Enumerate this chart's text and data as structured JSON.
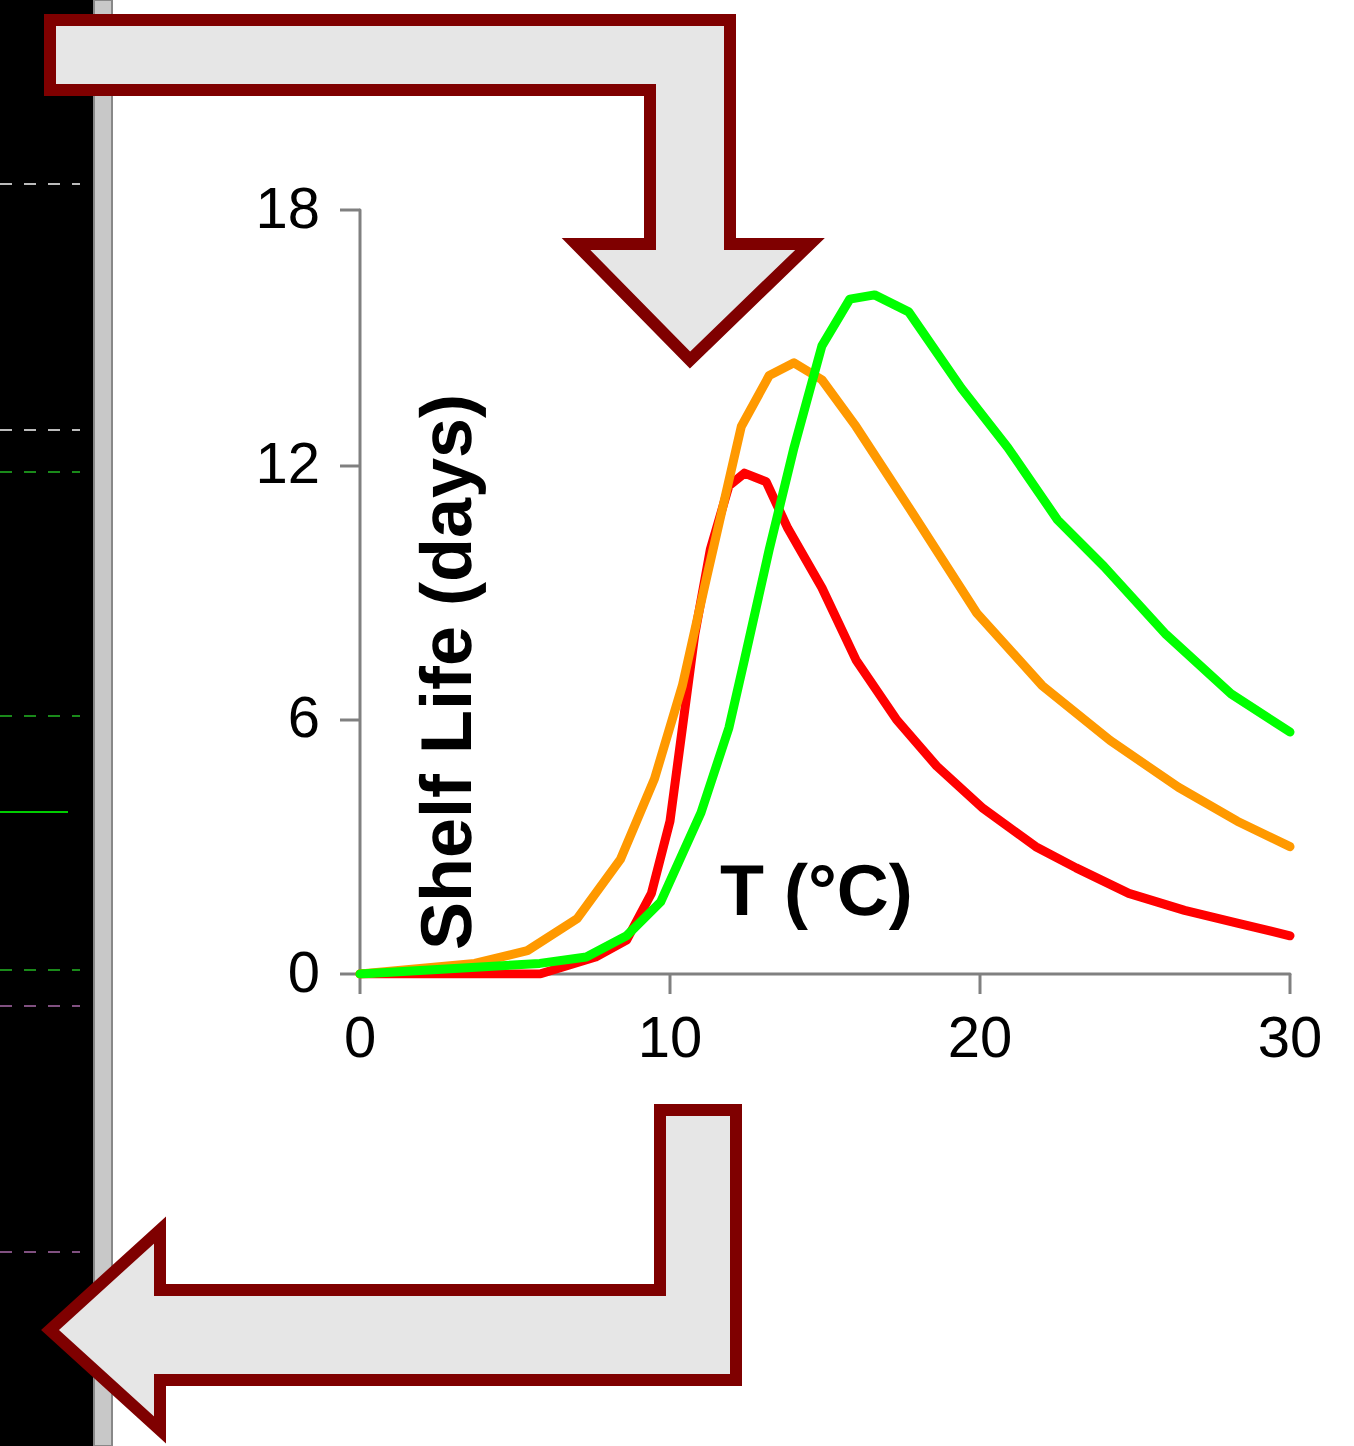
{
  "chart_data": {
    "type": "line",
    "xlabel": "T (°C)",
    "ylabel": "Shelf Life (days)",
    "xlim": [
      0,
      30
    ],
    "xticks": [
      0,
      10,
      20,
      30
    ],
    "ylim": [
      0,
      18
    ],
    "yticks": [
      0,
      6,
      12,
      18
    ],
    "marker": "none",
    "line_style": "solid",
    "series": [
      {
        "color": "#ff0000",
        "x": [
          0,
          5.8,
          7.6,
          8.6,
          9.4,
          10,
          10.4,
          10.8,
          11.3,
          11.9,
          12.4,
          13.1,
          13.8,
          14.9,
          16.0,
          17.3,
          18.6,
          20.1,
          21.8,
          23.1,
          24.8,
          26.6,
          28.3,
          30
        ],
        "values": [
          0,
          0,
          0.4,
          0.8,
          1.9,
          3.6,
          5.8,
          8.0,
          10.0,
          11.5,
          11.8,
          11.6,
          10.5,
          9.1,
          7.4,
          6.0,
          4.9,
          3.9,
          3.0,
          2.5,
          1.9,
          1.5,
          1.2,
          0.9
        ]
      },
      {
        "color": "#ff9900",
        "x": [
          0,
          3.7,
          5.4,
          7.0,
          8.4,
          9.5,
          10.4,
          11.2,
          12.3,
          13.2,
          14.0,
          14.9,
          16.0,
          17.7,
          19.9,
          22.0,
          24.2,
          26.4,
          28.3,
          30
        ],
        "values": [
          0,
          0.25,
          0.55,
          1.3,
          2.7,
          4.6,
          6.8,
          9.4,
          12.9,
          14.1,
          14.4,
          14.0,
          12.9,
          11.0,
          8.5,
          6.8,
          5.5,
          4.4,
          3.6,
          3.0
        ]
      },
      {
        "color": "#00ff00",
        "x": [
          0,
          5.8,
          7.3,
          8.6,
          9.7,
          11.0,
          11.9,
          12.4,
          13.2,
          14.0,
          14.9,
          15.8,
          16.6,
          17.7,
          19.4,
          20.9,
          22.5,
          24.0,
          26.0,
          28.1,
          30
        ],
        "values": [
          0,
          0.25,
          0.4,
          0.9,
          1.7,
          3.8,
          5.8,
          7.4,
          10.0,
          12.4,
          14.8,
          15.9,
          16.0,
          15.6,
          13.8,
          12.4,
          10.7,
          9.6,
          8.0,
          6.6,
          5.7
        ]
      }
    ]
  }
}
